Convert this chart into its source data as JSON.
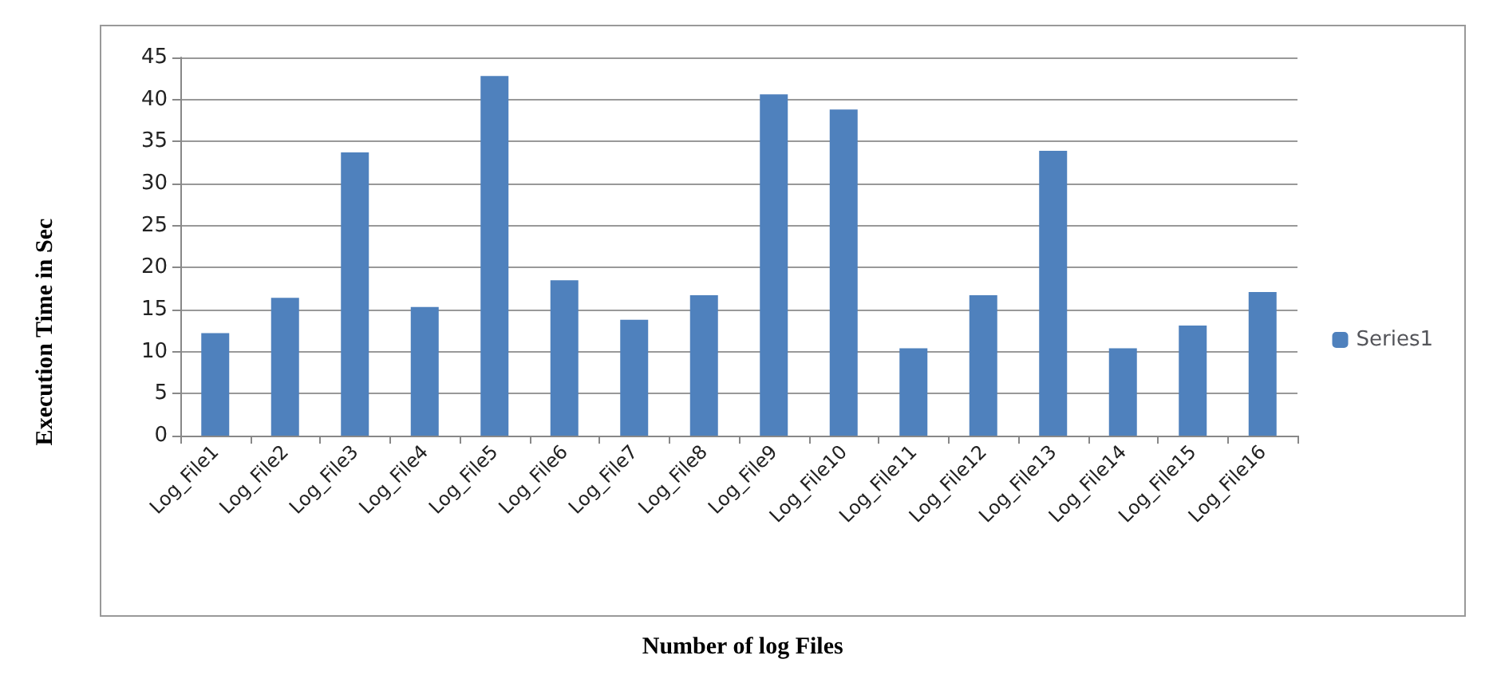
{
  "chart_data": {
    "type": "bar",
    "xlabel": "Number of log Files",
    "ylabel": "Execution Time in Sec",
    "categories": [
      "Log_File1",
      "Log_File2",
      "Log_File3",
      "Log_File4",
      "Log_File5",
      "Log_File6",
      "Log_File7",
      "Log_File8",
      "Log_File9",
      "Log_File10",
      "Log_File11",
      "Log_File12",
      "Log_File13",
      "Log_File14",
      "Log_File15",
      "Log_File16"
    ],
    "series": [
      {
        "name": "Series1",
        "color": "#4f81bd",
        "values": [
          12.2,
          16.4,
          33.7,
          15.3,
          42.8,
          18.5,
          13.8,
          16.7,
          40.6,
          38.8,
          10.4,
          16.7,
          33.9,
          10.4,
          13.1,
          17.1
        ]
      }
    ],
    "ylim": [
      0,
      45
    ],
    "yticks": [
      0,
      5,
      10,
      15,
      20,
      25,
      30,
      35,
      40,
      45
    ],
    "grid": "y",
    "legend": "right"
  }
}
